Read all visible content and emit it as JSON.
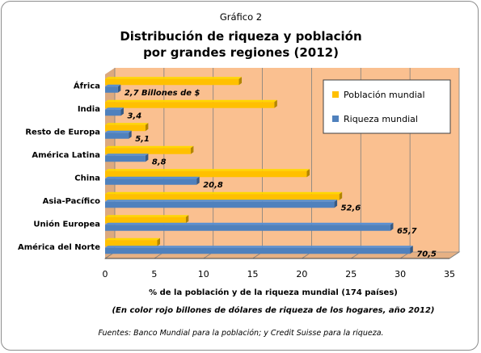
{
  "chart_data": {
    "type": "bar",
    "orientation": "horizontal",
    "kicker": "Gráfico 2",
    "title_lines": [
      "Distribución de riqueza y población",
      "por grandes regiones (2012)"
    ],
    "categories": [
      "África",
      "India",
      "Resto de Europa",
      "América Latina",
      "China",
      "Asia-Pacífico",
      "Unión Europea",
      "América del Norte"
    ],
    "series": [
      {
        "name": "Población mundial",
        "color": "#FFC000",
        "values": [
          13.6,
          17.2,
          4.1,
          8.7,
          20.5,
          23.8,
          8.2,
          5.3
        ]
      },
      {
        "name": "Riqueza mundial",
        "color": "#4F81BD",
        "values": [
          1.3,
          1.6,
          2.4,
          4.1,
          9.3,
          23.3,
          29.0,
          31.0
        ]
      }
    ],
    "bar_labels": [
      "2,7 Billones  de $",
      "3,4",
      "5,1",
      "8,8",
      "20,8",
      "52,6",
      "65,7",
      "70,5"
    ],
    "xlim": [
      0,
      35
    ],
    "xticks": [
      0,
      5,
      10,
      15,
      20,
      25,
      30,
      35
    ],
    "xlabel": "% de la población  y  de la riqueza mundial (174 países)",
    "note": "(En color rojo billones de dólares de riqueza de los hogares, año 2012)",
    "source": "Fuentes:  Banco Mundial para la población; y Credit  Suisse para la riqueza.",
    "legend_position": "top-right",
    "grid": true,
    "colors": {
      "plot_background": "#FAC090",
      "label": "#E00000",
      "grid": "#7F7F7F"
    }
  }
}
